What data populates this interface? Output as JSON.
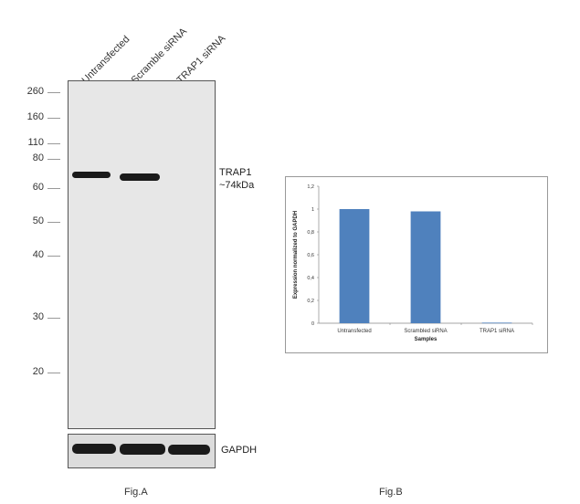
{
  "figA": {
    "lanes": [
      "Untransfected",
      "Scramble siRNA",
      "TRAP1 siRNA"
    ],
    "mw_markers": [
      "260",
      "160",
      "110",
      "80",
      "60",
      "50",
      "40",
      "30",
      "20"
    ],
    "target_label": "TRAP1",
    "target_size": "~74kDa",
    "loading_label": "GAPDH",
    "caption": "Fig.A"
  },
  "figB": {
    "caption": "Fig.B"
  },
  "chart_data": {
    "type": "bar",
    "categories": [
      "Untransfected",
      "Scrambled siRNA",
      "TRAP1 siRNA"
    ],
    "values": [
      1.0,
      0.98,
      0.005
    ],
    "ylabel": "Expression normalized to GAPDH",
    "xlabel": "Samples",
    "ylim": [
      0,
      1.2
    ],
    "yticks": [
      "0",
      "0,2",
      "0,4",
      "0,6",
      "0,8",
      "1",
      "1,2"
    ],
    "bar_color": "#4f81bd",
    "grid": false
  }
}
